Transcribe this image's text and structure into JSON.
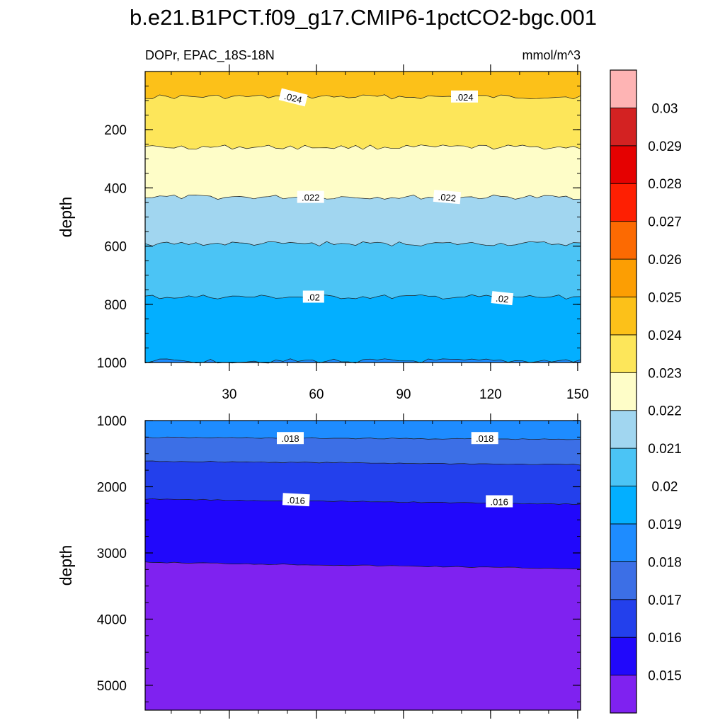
{
  "chart_data": {
    "type": "contour",
    "title": "b.e21.B1PCT.f09_g17.CMIP6-1pctCO2-bgc.001",
    "variable_label": "DOPr, EPAC_18S-18N",
    "units": "mmol/m^3",
    "colorbar": {
      "levels": [
        0.015,
        0.016,
        0.017,
        0.018,
        0.019,
        0.02,
        0.021,
        0.022,
        0.023,
        0.024,
        0.025,
        0.026,
        0.027,
        0.028,
        0.029,
        0.03
      ],
      "labels": [
        "0.015",
        "0.016",
        "0.017",
        "0.018",
        "0.019",
        "0.02",
        "0.021",
        "0.022",
        "0.023",
        "0.024",
        "0.025",
        "0.026",
        "0.027",
        "0.028",
        "0.029",
        "0.03"
      ],
      "colors": [
        "#7f22f0",
        "#2108fb",
        "#2340ec",
        "#3c6fe6",
        "#1e8cff",
        "#03afff",
        "#4bc4f5",
        "#a1d6f0",
        "#fefdc8",
        "#fde65a",
        "#fcc119",
        "#fc9e03",
        "#fc6a02",
        "#fe1f02",
        "#e50101",
        "#d32222",
        "#feb4b4"
      ]
    },
    "panels": [
      {
        "name": "upper",
        "xlim": [
          1,
          151
        ],
        "xticks": [
          30,
          60,
          90,
          120,
          150
        ],
        "ylim": [
          0,
          1000
        ],
        "y_inverted": true,
        "yticks": [
          200,
          400,
          600,
          800,
          1000
        ],
        "ylabel": "depth",
        "bands": [
          {
            "top": 0,
            "bottom": 87,
            "value": 0.0245
          },
          {
            "top": 87,
            "bottom": 260,
            "value": 0.0235
          },
          {
            "top": 260,
            "bottom": 432,
            "value": 0.0225
          },
          {
            "top": 432,
            "bottom": 592,
            "value": 0.0215
          },
          {
            "top": 592,
            "bottom": 775,
            "value": 0.0205
          },
          {
            "top": 775,
            "bottom": 995,
            "value": 0.0195
          },
          {
            "top": 995,
            "bottom": 1000,
            "value": 0.0185
          }
        ],
        "contour_labels": [
          {
            "x": 52,
            "y": 90,
            "text": ".024",
            "angle": 14
          },
          {
            "x": 111,
            "y": 87,
            "text": ".024",
            "angle": 0
          },
          {
            "x": 58,
            "y": 432,
            "text": ".022",
            "angle": 0
          },
          {
            "x": 105,
            "y": 432,
            "text": ".022",
            "angle": 5
          },
          {
            "x": 59,
            "y": 775,
            "text": ".02",
            "angle": 0
          },
          {
            "x": 124,
            "y": 780,
            "text": ".02",
            "angle": 6
          }
        ]
      },
      {
        "name": "lower",
        "xlim": [
          1,
          151
        ],
        "ylim": [
          1000,
          5375
        ],
        "y_inverted": true,
        "yticks": [
          1000,
          2000,
          3000,
          4000,
          5000
        ],
        "ylabel": "depth",
        "bands": [
          {
            "top": 1000,
            "bottom": 1270,
            "value": 0.0185
          },
          {
            "top": 1270,
            "bottom": 1640,
            "value": 0.0175
          },
          {
            "top": 1640,
            "bottom": 2225,
            "value": 0.0165
          },
          {
            "top": 2225,
            "bottom": 3190,
            "value": 0.0155
          },
          {
            "top": 3190,
            "bottom": 5375,
            "value": 0.0145
          }
        ],
        "contour_labels": [
          {
            "x": 51,
            "y": 1270,
            "text": ".018",
            "angle": 0
          },
          {
            "x": 118,
            "y": 1270,
            "text": ".018",
            "angle": 0
          },
          {
            "x": 53,
            "y": 2200,
            "text": ".016",
            "angle": 3
          },
          {
            "x": 123,
            "y": 2225,
            "text": ".016",
            "angle": 0
          }
        ]
      }
    ]
  }
}
